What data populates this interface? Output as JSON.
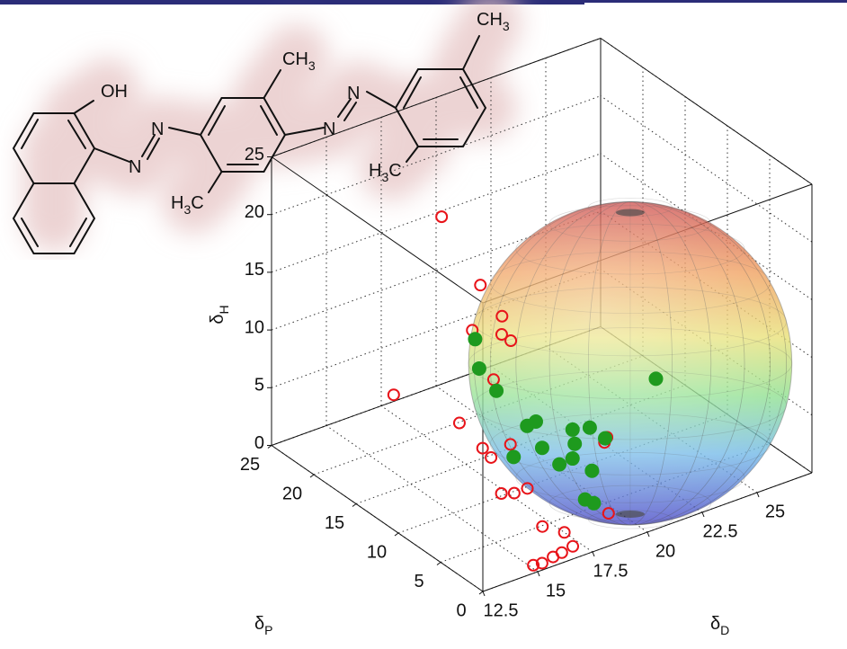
{
  "chart_data": {
    "type": "scatter3d",
    "x_label": "δ",
    "x_label_sub": "D",
    "y_label": "δ",
    "y_label_sub": "P",
    "z_label": "δ",
    "z_label_sub": "H",
    "xlim": [
      12.5,
      27.5
    ],
    "xticks": [
      12.5,
      15,
      17.5,
      20,
      22.5,
      25
    ],
    "ylim": [
      0,
      25
    ],
    "yticks": [
      0,
      5,
      10,
      15,
      20,
      25
    ],
    "zlim": [
      0,
      25
    ],
    "zticks": [
      0,
      5,
      10,
      15,
      20,
      25
    ],
    "grid": true,
    "sphere": {
      "center": [
        22.3,
        8,
        9
      ],
      "radius": 14
    },
    "series": [
      {
        "color": "#e8141a",
        "marker": "open",
        "x": [
          16.4,
          14.7,
          15.3,
          15.1,
          14.9,
          15.7,
          14.6,
          15.3,
          14.9,
          14.8,
          15.3,
          14.8,
          19.7,
          19.2,
          14.5,
          14.7,
          15.3,
          15.6,
          16.6,
          19.0,
          16.6,
          16.1,
          15.7,
          15.2,
          14.8
        ],
        "y": [
          15,
          6,
          5,
          8,
          4,
          5,
          16,
          6,
          9,
          6,
          4,
          5,
          4,
          3,
          3,
          2,
          2,
          1,
          1,
          2,
          0,
          0,
          0,
          0,
          0
        ],
        "z": [
          22.2,
          22.0,
          19.4,
          16.8,
          18.6,
          17.0,
          7.5,
          13.4,
          8.4,
          7.8,
          8.8,
          7.5,
          6.4,
          6.8,
          5.6,
          6.0,
          6.0,
          3.0,
          1.8,
          1.3,
          1.1,
          0.9,
          0.8,
          0.6,
          0.7
        ]
      },
      {
        "color": "#1e9a1e",
        "marker": "filled",
        "x": [
          16.0,
          15.8,
          16.2,
          22.7,
          17.6,
          18.0,
          18.9,
          19.3,
          19.0,
          17.9,
          18.9,
          18.3,
          16.6,
          19.4,
          18.7,
          19.1,
          20.0
        ],
        "y": [
          10,
          9,
          8,
          6,
          8,
          8,
          6,
          5,
          6,
          7,
          6,
          6,
          7,
          5,
          4,
          4,
          5
        ],
        "z": [
          14.4,
          12.5,
          10.8,
          8.4,
          6.8,
          6.9,
          6.6,
          7.0,
          5.3,
          5.2,
          4.1,
          4.0,
          5.3,
          3.2,
          1.7,
          1.1,
          5.6
        ]
      }
    ]
  },
  "molecule": {
    "labels": [
      {
        "text": "OH"
      },
      {
        "text": "N"
      },
      {
        "text": "N"
      },
      {
        "text": "N"
      },
      {
        "text": "N"
      },
      {
        "text": "CH",
        "sub": "3"
      },
      {
        "text": "CH",
        "sub": "3"
      },
      {
        "text": "H",
        "sub": "3",
        "tail": "C"
      },
      {
        "text": "H",
        "sub": "3",
        "tail": "C"
      }
    ]
  }
}
